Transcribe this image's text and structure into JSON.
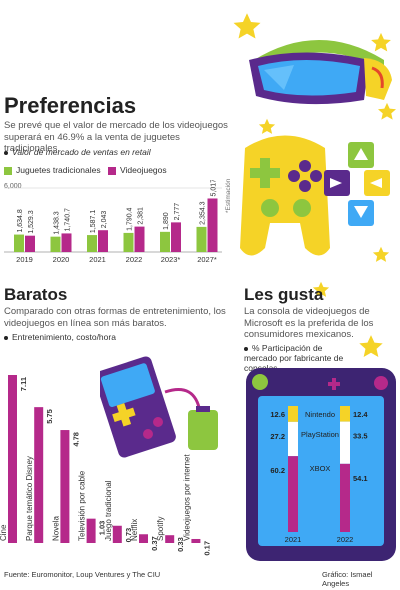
{
  "preferencias": {
    "title": "Preferencias",
    "description": "Se prevé que el valor de mercado de los videojuegos superará en 46.9% a la venta de juguetes tradicionales.",
    "subtitle": "Valor de mercado de ventas en retail",
    "legend": [
      "Juguetes tradicionales",
      "Videojuegos"
    ],
    "estimacion_note": "*Estimación",
    "y_tick": "6,000"
  },
  "baratos": {
    "title": "Baratos",
    "description": "Comparado con otras formas de entretenimiento, los videojuegos en línea son más baratos.",
    "subtitle": "Entretenimiento, costo/hora"
  },
  "les_gusta": {
    "title": "Les gusta",
    "description": "La consola de videojuegos de Microsoft es la preferida de los consumidores mexicanos.",
    "subtitle": "% Participación de mercado por fabricante de consolas"
  },
  "footer": {
    "source": "Fuente: Euromonitor, Loup Ventures y The CIU",
    "credit": "Gráfico: Ismael Angeles"
  },
  "colors": {
    "green": "#8dc63f",
    "magenta": "#b5298a",
    "purple": "#5a2a8c",
    "yellow": "#f5d327",
    "console_frame": "#3d2472"
  },
  "chart_data": [
    {
      "type": "bar",
      "categories": [
        "2019",
        "2020",
        "2021",
        "2022",
        "2023*",
        "2027*"
      ],
      "series": [
        {
          "name": "Juguetes tradicionales",
          "values": [
            1634.8,
            1438.3,
            1587.1,
            1790.4,
            1890,
            2354.3
          ]
        },
        {
          "name": "Videojuegos",
          "values": [
            1529.3,
            1740.7,
            2043,
            2381,
            2777,
            5017
          ]
        }
      ],
      "value_labels": [
        [
          "1,634.8",
          "1,438.3",
          "1,587.1",
          "1,790.4",
          "1,890",
          "2,354.3"
        ],
        [
          "1,529.3",
          "1,740.7",
          "2,043",
          "2,381",
          "2,777",
          "5,017"
        ]
      ],
      "ylim": [
        0,
        6000
      ],
      "title": "Valor de mercado de ventas en retail"
    },
    {
      "type": "bar",
      "categories": [
        "Cine",
        "Parque temático Disney",
        "Novela",
        "Televisión por cable",
        "Juego tradicional",
        "Netflix",
        "Spotify",
        "Videojuegos por internet"
      ],
      "values": [
        7.11,
        5.75,
        4.78,
        1.03,
        0.73,
        0.37,
        0.33,
        0.17
      ],
      "title": "Entretenimiento, costo/hora"
    },
    {
      "type": "bar",
      "categories": [
        "2021",
        "2022"
      ],
      "series": [
        {
          "name": "Nintendo",
          "values": [
            12.6,
            12.4
          ]
        },
        {
          "name": "PlayStation",
          "values": [
            27.2,
            33.5
          ]
        },
        {
          "name": "XBOX",
          "values": [
            60.2,
            54.1
          ]
        }
      ],
      "title": "% Participación de mercado por fabricante de consolas"
    }
  ]
}
